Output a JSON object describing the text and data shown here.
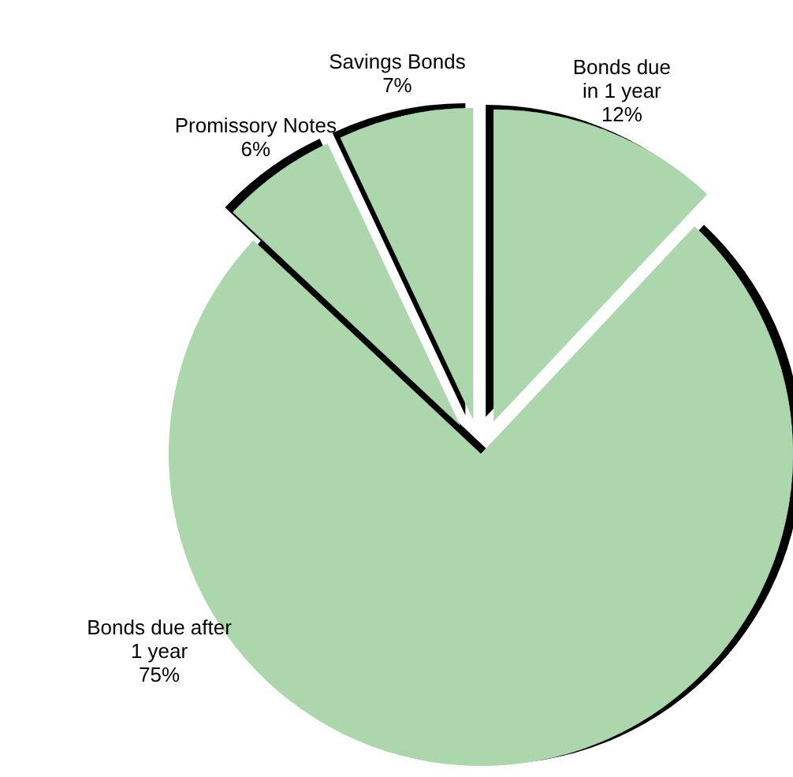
{
  "chart_data": {
    "type": "pie",
    "categories": [
      "Bonds due\nin 1 year",
      "Bonds due after\n1 year",
      "Promissory Notes",
      "Savings Bonds"
    ],
    "values": [
      12,
      75,
      6,
      7
    ],
    "value_labels": [
      "12%",
      "75%",
      "6%",
      "7%"
    ],
    "colors": [
      "#acd6ac",
      "#acd6ac",
      "#acd6ac",
      "#acd6ac"
    ]
  }
}
